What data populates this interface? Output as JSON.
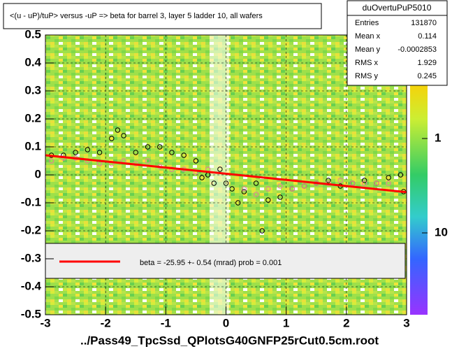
{
  "chart_data": {
    "type": "scatter",
    "title": "<(u - uP)/tuP> versus  -uP => beta for barrel 3, layer 5 ladder 10, all wafers",
    "x_label": "../Pass49_TpcSsd_QPlotsG40GNFP25rCut0.5cm.root",
    "xlim": [
      -3,
      3
    ],
    "xticks": [
      -3,
      -2,
      -1,
      0,
      1,
      2,
      3
    ],
    "ylim": [
      -0.5,
      0.5
    ],
    "yticks": [
      -0.5,
      -0.4,
      -0.3,
      -0.2,
      -0.1,
      0,
      0.1,
      0.2,
      0.3,
      0.4,
      0.5
    ],
    "grid": true,
    "zlim": [
      0.08,
      73.6
    ],
    "zticks": [
      1,
      10
    ],
    "zlog": true,
    "series": [
      {
        "mode": "markers",
        "color": "#000000",
        "x": [
          -2.9,
          -2.7,
          -2.5,
          -2.3,
          -2.1,
          -1.9,
          -1.8,
          -1.7,
          -1.5,
          -1.3,
          -1.1,
          -0.9,
          -0.7,
          -0.5,
          -0.4,
          -0.3,
          -0.2,
          -0.1,
          0.0,
          0.1,
          0.2,
          0.3,
          0.5,
          0.6,
          0.7,
          0.9,
          1.1,
          1.3,
          1.5,
          1.7,
          1.9,
          2.1,
          2.3,
          2.5,
          2.7,
          2.9,
          2.95
        ],
        "values": [
          0.07,
          0.07,
          0.08,
          0.09,
          0.08,
          0.13,
          0.16,
          0.14,
          0.08,
          0.1,
          0.1,
          0.08,
          0.07,
          0.05,
          -0.01,
          0.0,
          -0.03,
          0.02,
          -0.03,
          -0.05,
          -0.1,
          -0.06,
          -0.03,
          -0.2,
          -0.09,
          -0.08,
          -0.05,
          -0.04,
          -0.03,
          -0.02,
          -0.04,
          -0.03,
          -0.02,
          -0.03,
          -0.01,
          0.0,
          -0.06
        ]
      },
      {
        "mode": "markers",
        "color": "#e87a9a",
        "x": [
          -2.9,
          -2.7,
          -2.5,
          -2.3,
          -2.1,
          -1.9,
          -1.7,
          -1.5,
          -1.3,
          -1.1,
          -0.9,
          -0.7,
          -0.5,
          -0.3,
          0.3,
          0.5,
          0.7,
          0.9,
          1.1,
          1.3,
          1.5,
          1.7,
          1.9,
          2.1,
          2.3,
          2.5,
          2.7
        ],
        "values": [
          0.05,
          0.06,
          0.06,
          0.05,
          0.04,
          0.04,
          0.05,
          0.04,
          0.05,
          0.03,
          0.02,
          0.02,
          0.01,
          0.02,
          -0.05,
          -0.07,
          -0.05,
          -0.04,
          -0.05,
          -0.04,
          -0.03,
          -0.03,
          -0.02,
          -0.03,
          -0.03,
          -0.03,
          -0.03
        ]
      },
      {
        "mode": "line",
        "color": "#ff0000",
        "name": "beta =  -25.95 +-  0.54 (mrad) prob = 0.001",
        "x": [
          -3,
          3
        ],
        "values": [
          0.07,
          -0.062
        ]
      }
    ],
    "stats": {
      "title": "duOvertuPuP5010",
      "rows": [
        {
          "label": "Entries",
          "value": 131870
        },
        {
          "label": "Mean x",
          "value": 0.114
        },
        {
          "label": "Mean y",
          "value": -0.0002853
        },
        {
          "label": "RMS x",
          "value": 1.929
        },
        {
          "label": "RMS y",
          "value": 0.245
        }
      ]
    }
  }
}
